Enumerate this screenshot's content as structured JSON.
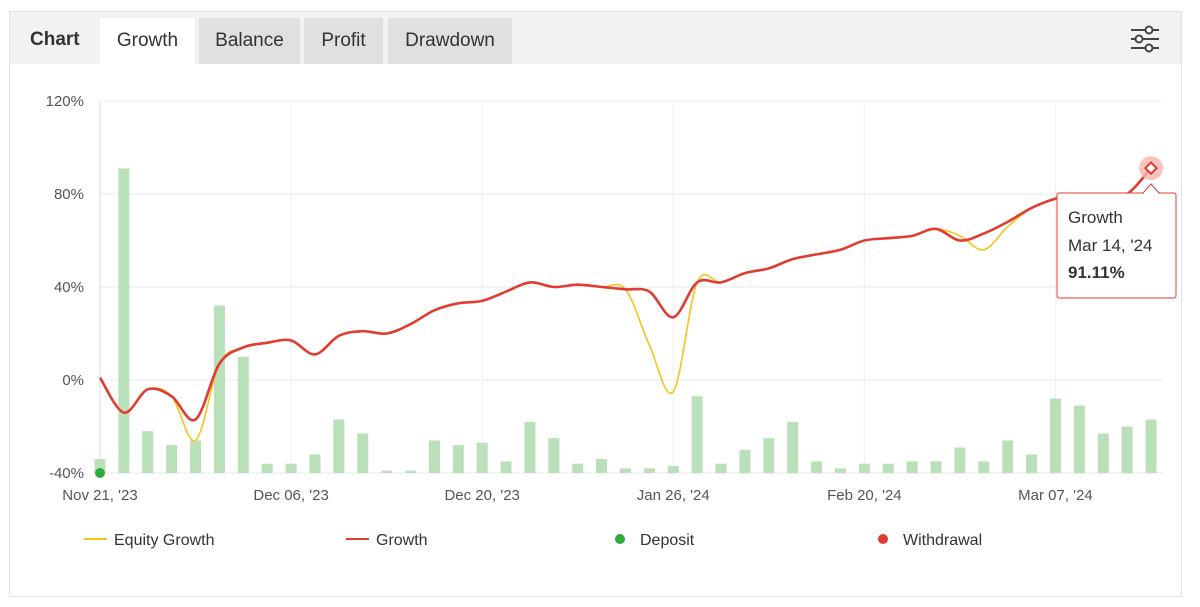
{
  "header": {
    "title": "Chart",
    "tabs": [
      {
        "label": "Growth",
        "active": true
      },
      {
        "label": "Balance",
        "active": false
      },
      {
        "label": "Profit",
        "active": false
      },
      {
        "label": "Drawdown",
        "active": false
      }
    ],
    "settings_icon": "sliders-icon"
  },
  "colors": {
    "equity": "#f5c518",
    "growth": "#e03c31",
    "deposit": "#2eaa3c",
    "withdrawal": "#e03c31",
    "bars": "#b9e0b9",
    "grid": "#e8e8e8"
  },
  "chart_data": {
    "type": "line",
    "xlabel": "",
    "ylabel": "",
    "ylim": [
      -40,
      120
    ],
    "y_ticks": [
      "120%",
      "80%",
      "40%",
      "0%",
      "-40%"
    ],
    "y_tick_values": [
      120,
      80,
      40,
      0,
      -40
    ],
    "x_ticks": [
      "Nov 21, '23",
      "Dec 06, '23",
      "Dec 20, '23",
      "Jan 26, '24",
      "Feb 20, '24",
      "Mar 07, '24"
    ],
    "x_tick_index": [
      0,
      8,
      16,
      24,
      32,
      40
    ],
    "series": [
      {
        "name": "Equity Growth",
        "values": [
          1,
          -14,
          -4,
          -7,
          -26,
          7,
          14,
          16,
          17,
          11,
          19,
          21,
          20,
          24,
          30,
          33,
          34,
          38,
          42,
          40,
          41,
          40,
          39,
          15,
          -5,
          42,
          42,
          46,
          48,
          52,
          54,
          56,
          60,
          61,
          62,
          65,
          62,
          56,
          66,
          74,
          78,
          80,
          79,
          80,
          92
        ]
      },
      {
        "name": "Growth",
        "values": [
          1,
          -14,
          -4,
          -7,
          -17,
          7,
          14,
          16,
          17,
          11,
          19,
          21,
          20,
          24,
          30,
          33,
          34,
          38,
          42,
          40,
          41,
          40,
          39,
          38,
          27,
          42,
          42,
          46,
          48,
          52,
          54,
          56,
          60,
          61,
          62,
          65,
          60,
          63,
          68,
          74,
          78,
          80,
          79,
          80,
          91.11
        ]
      }
    ],
    "bars": {
      "name": "",
      "values": [
        -34,
        91,
        -22,
        -28,
        -26,
        32,
        10,
        -36,
        -36,
        -32,
        -17,
        -23,
        -39,
        -39,
        -26,
        -28,
        -27,
        -35,
        -18,
        -25,
        -36,
        -34,
        -38,
        -38,
        -37,
        -7,
        -36,
        -30,
        -25,
        -18,
        -35,
        -38,
        -36,
        -36,
        -35,
        -35,
        -29,
        -35,
        -26,
        -32,
        -8,
        -11,
        -23,
        -20,
        -17
      ]
    },
    "deposits": [
      {
        "index": 0,
        "value": -40
      }
    ],
    "legend": [
      {
        "label": "Equity Growth",
        "marker": "line",
        "color": "#f5c518"
      },
      {
        "label": "Growth",
        "marker": "line",
        "color": "#e03c31"
      },
      {
        "label": "Deposit",
        "marker": "dot",
        "color": "#2eaa3c"
      },
      {
        "label": "Withdrawal",
        "marker": "dot",
        "color": "#e03c31"
      }
    ],
    "legend_position": "bottom",
    "grid": true,
    "tooltip": {
      "title": "Growth",
      "date": "Mar 14, '24",
      "value": "91.11%",
      "index": 44
    }
  }
}
